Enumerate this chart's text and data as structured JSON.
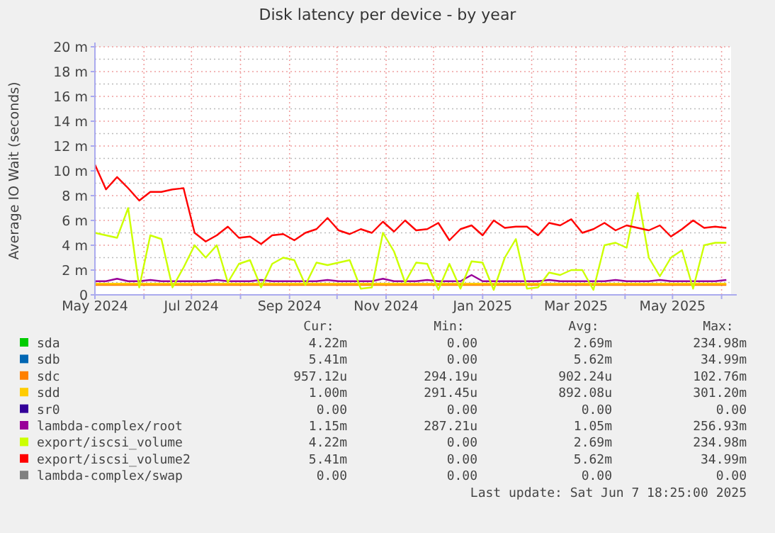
{
  "chart_data": {
    "type": "line",
    "title": "Disk latency per device - by year",
    "ylabel": "Average IO Wait (seconds)",
    "x": [
      "2024-05-01",
      "2024-05-08",
      "2024-05-15",
      "2024-05-22",
      "2024-05-29",
      "2024-06-05",
      "2024-06-12",
      "2024-06-19",
      "2024-06-26",
      "2024-07-03",
      "2024-07-10",
      "2024-07-17",
      "2024-07-24",
      "2024-07-31",
      "2024-08-07",
      "2024-08-14",
      "2024-08-21",
      "2024-08-28",
      "2024-09-04",
      "2024-09-11",
      "2024-09-18",
      "2024-09-25",
      "2024-10-02",
      "2024-10-09",
      "2024-10-16",
      "2024-10-23",
      "2024-10-30",
      "2024-11-06",
      "2024-11-13",
      "2024-11-20",
      "2024-11-27",
      "2024-12-04",
      "2024-12-11",
      "2024-12-18",
      "2024-12-25",
      "2025-01-01",
      "2025-01-08",
      "2025-01-15",
      "2025-01-22",
      "2025-01-29",
      "2025-02-05",
      "2025-02-12",
      "2025-02-19",
      "2025-02-26",
      "2025-03-05",
      "2025-03-12",
      "2025-03-19",
      "2025-03-26",
      "2025-04-02",
      "2025-04-09",
      "2025-04-16",
      "2025-04-23",
      "2025-04-30",
      "2025-05-07",
      "2025-05-14",
      "2025-05-21",
      "2025-05-28",
      "2025-06-04"
    ],
    "xlim": [
      "2024-05-01",
      "2025-06-07"
    ],
    "xticks": [
      {
        "value": "2024-05-01",
        "label": "May 2024"
      },
      {
        "value": "2024-06-01",
        "label": null
      },
      {
        "value": "2024-07-01",
        "label": "Jul 2024"
      },
      {
        "value": "2024-08-01",
        "label": null
      },
      {
        "value": "2024-09-01",
        "label": "Sep 2024"
      },
      {
        "value": "2024-10-01",
        "label": null
      },
      {
        "value": "2024-11-01",
        "label": "Nov 2024"
      },
      {
        "value": "2024-12-01",
        "label": null
      },
      {
        "value": "2025-01-01",
        "label": "Jan 2025"
      },
      {
        "value": "2025-02-01",
        "label": null
      },
      {
        "value": "2025-03-01",
        "label": "Mar 2025"
      },
      {
        "value": "2025-04-01",
        "label": null
      },
      {
        "value": "2025-05-01",
        "label": "May 2025"
      },
      {
        "value": "2025-06-01",
        "label": null
      }
    ],
    "ylim": [
      0,
      20
    ],
    "yticks": [
      {
        "value": 0,
        "label": "0"
      },
      {
        "value": 2,
        "label": "2 m"
      },
      {
        "value": 4,
        "label": "4 m"
      },
      {
        "value": 6,
        "label": "6 m"
      },
      {
        "value": 8,
        "label": "8 m"
      },
      {
        "value": 10,
        "label": "10 m"
      },
      {
        "value": 12,
        "label": "12 m"
      },
      {
        "value": 14,
        "label": "14 m"
      },
      {
        "value": 16,
        "label": "16 m"
      },
      {
        "value": 18,
        "label": "18 m"
      },
      {
        "value": 20,
        "label": "20 m"
      }
    ],
    "grid": true,
    "legend": "bottom",
    "marker": "none",
    "line_style": "solid",
    "series": [
      {
        "name": "sda",
        "color": "#00cc00",
        "values": [
          null,
          null,
          null,
          null,
          null,
          null,
          null,
          null,
          null,
          null,
          null,
          null,
          null,
          null,
          null,
          null,
          null,
          null,
          null,
          null,
          null,
          null,
          null,
          null,
          null,
          null,
          null,
          null,
          null,
          null,
          null,
          null,
          null,
          null,
          null,
          null,
          null,
          null,
          null,
          null,
          null,
          null,
          null,
          null,
          null,
          null,
          null,
          null,
          null,
          null,
          null,
          null,
          null,
          null,
          null,
          null,
          null,
          null
        ]
      },
      {
        "name": "sdb",
        "color": "#0066b3",
        "values": [
          null,
          null,
          null,
          null,
          null,
          null,
          null,
          null,
          null,
          null,
          null,
          null,
          null,
          null,
          null,
          null,
          null,
          null,
          null,
          null,
          null,
          null,
          null,
          null,
          null,
          null,
          null,
          null,
          null,
          null,
          null,
          null,
          null,
          null,
          null,
          null,
          null,
          null,
          null,
          null,
          null,
          null,
          null,
          null,
          null,
          null,
          null,
          null,
          null,
          null,
          null,
          null,
          null,
          null,
          null,
          null,
          null,
          null
        ]
      },
      {
        "name": "sdc",
        "color": "#ff8000",
        "values": [
          0.8,
          0.8,
          0.8,
          0.8,
          0.8,
          0.8,
          0.8,
          0.8,
          0.8,
          0.8,
          0.8,
          0.8,
          0.8,
          0.8,
          0.8,
          0.8,
          0.8,
          0.8,
          0.8,
          0.8,
          0.8,
          0.8,
          0.8,
          0.8,
          0.8,
          0.8,
          0.8,
          0.8,
          0.8,
          0.8,
          0.8,
          0.8,
          0.8,
          0.8,
          0.8,
          0.8,
          0.8,
          0.8,
          0.8,
          0.8,
          0.8,
          0.8,
          0.8,
          0.8,
          0.8,
          0.8,
          0.8,
          0.8,
          0.8,
          0.8,
          0.8,
          0.8,
          0.8,
          0.8,
          0.8,
          0.8,
          0.8,
          0.8
        ]
      },
      {
        "name": "sdd",
        "color": "#ffcc00",
        "values": [
          0.9,
          0.9,
          0.9,
          0.9,
          0.9,
          0.9,
          0.9,
          0.9,
          0.9,
          0.9,
          0.9,
          0.9,
          0.9,
          0.9,
          0.9,
          0.9,
          0.9,
          0.9,
          0.9,
          0.9,
          0.9,
          0.9,
          0.9,
          0.9,
          0.9,
          0.9,
          0.9,
          0.9,
          0.9,
          0.9,
          0.9,
          0.9,
          0.9,
          0.9,
          0.9,
          0.9,
          0.9,
          0.9,
          0.9,
          0.9,
          0.9,
          0.9,
          0.9,
          0.9,
          0.9,
          0.9,
          0.9,
          0.9,
          0.9,
          0.9,
          0.9,
          0.9,
          0.9,
          0.9,
          0.9,
          0.9,
          0.9,
          0.9
        ]
      },
      {
        "name": "sr0",
        "color": "#330099",
        "values": [
          null,
          null,
          null,
          null,
          null,
          null,
          null,
          null,
          null,
          null,
          null,
          null,
          null,
          null,
          null,
          null,
          null,
          null,
          null,
          null,
          null,
          null,
          null,
          null,
          null,
          null,
          null,
          null,
          null,
          null,
          null,
          null,
          null,
          null,
          null,
          null,
          null,
          null,
          null,
          null,
          null,
          null,
          null,
          null,
          null,
          null,
          null,
          null,
          null,
          null,
          null,
          null,
          null,
          null,
          null,
          null,
          null,
          null
        ]
      },
      {
        "name": "lambda-complex/root",
        "color": "#990099",
        "values": [
          1.1,
          1.1,
          1.3,
          1.1,
          1.1,
          1.2,
          1.1,
          1.1,
          1.1,
          1.1,
          1.1,
          1.2,
          1.1,
          1.1,
          1.1,
          1.2,
          1.1,
          1.1,
          1.1,
          1.1,
          1.1,
          1.2,
          1.1,
          1.1,
          1.1,
          1.1,
          1.3,
          1.1,
          1.1,
          1.1,
          1.2,
          1.1,
          1.1,
          1.1,
          1.6,
          1.1,
          1.1,
          1.1,
          1.1,
          1.1,
          1.1,
          1.2,
          1.1,
          1.1,
          1.1,
          1.1,
          1.1,
          1.2,
          1.1,
          1.1,
          1.1,
          1.2,
          1.1,
          1.1,
          1.1,
          1.1,
          1.1,
          1.2
        ]
      },
      {
        "name": "export/iscsi_volume",
        "color": "#ccff00",
        "values": [
          5,
          4.8,
          4.6,
          7,
          0.6,
          4.8,
          4.5,
          0.6,
          2.2,
          4,
          3,
          4,
          1,
          2.5,
          2.8,
          0.6,
          2.5,
          3,
          2.8,
          0.8,
          2.6,
          2.4,
          2.6,
          2.8,
          0.5,
          0.6,
          5,
          3.5,
          1,
          2.6,
          2.5,
          0.4,
          2.5,
          0.5,
          2.7,
          2.6,
          0.4,
          3,
          4.5,
          0.5,
          0.6,
          1.8,
          1.6,
          2,
          2,
          0.4,
          4,
          4.2,
          3.8,
          8.2,
          3,
          1.5,
          3,
          3.6,
          0.5,
          4,
          4.2,
          4.2
        ]
      },
      {
        "name": "export/iscsi_volume2",
        "color": "#ff0000",
        "values": [
          10.5,
          8.5,
          9.5,
          8.6,
          7.6,
          8.3,
          8.3,
          8.5,
          8.6,
          5,
          4.3,
          4.8,
          5.5,
          4.6,
          4.7,
          4.1,
          4.8,
          4.9,
          4.4,
          5,
          5.3,
          6.2,
          5.2,
          4.9,
          5.3,
          5,
          5.9,
          5.1,
          6,
          5.2,
          5.3,
          5.8,
          4.4,
          5.3,
          5.6,
          4.8,
          6,
          5.4,
          5.5,
          5.5,
          4.8,
          5.8,
          5.6,
          6.1,
          5,
          5.3,
          5.8,
          5.2,
          5.6,
          5.4,
          5.2,
          5.6,
          4.7,
          5.3,
          6,
          5.4,
          5.5,
          5.4
        ]
      },
      {
        "name": "lambda-complex/swap",
        "color": "#808080",
        "values": [
          null,
          null,
          null,
          null,
          null,
          null,
          null,
          null,
          null,
          null,
          null,
          null,
          null,
          null,
          null,
          null,
          null,
          null,
          null,
          null,
          null,
          null,
          null,
          null,
          null,
          null,
          null,
          null,
          null,
          null,
          null,
          null,
          null,
          null,
          null,
          null,
          null,
          null,
          null,
          null,
          null,
          null,
          null,
          null,
          null,
          null,
          null,
          null,
          null,
          null,
          null,
          null,
          null,
          null,
          null,
          null,
          null,
          null
        ]
      }
    ],
    "annotations": [
      "Cur:",
      "Min:",
      "Avg:",
      "Max:",
      "4.22m",
      "0.00",
      "2.69m",
      "234.98m",
      "5.41m",
      "0.00",
      "5.62m",
      "34.99m",
      "957.12u",
      "294.19u",
      "902.24u",
      "102.76m",
      "1.00m",
      "291.45u",
      "892.08u",
      "301.20m",
      "0.00",
      "0.00",
      "0.00",
      "0.00",
      "1.15m",
      "287.21u",
      "1.05m",
      "256.93m",
      "4.22m",
      "0.00",
      "2.69m",
      "234.98m",
      "5.41m",
      "0.00",
      "5.62m",
      "34.99m",
      "0.00",
      "0.00",
      "0.00",
      "0.00",
      "Last update:  Sat Jun  7 18:25:00 2025"
    ]
  }
}
